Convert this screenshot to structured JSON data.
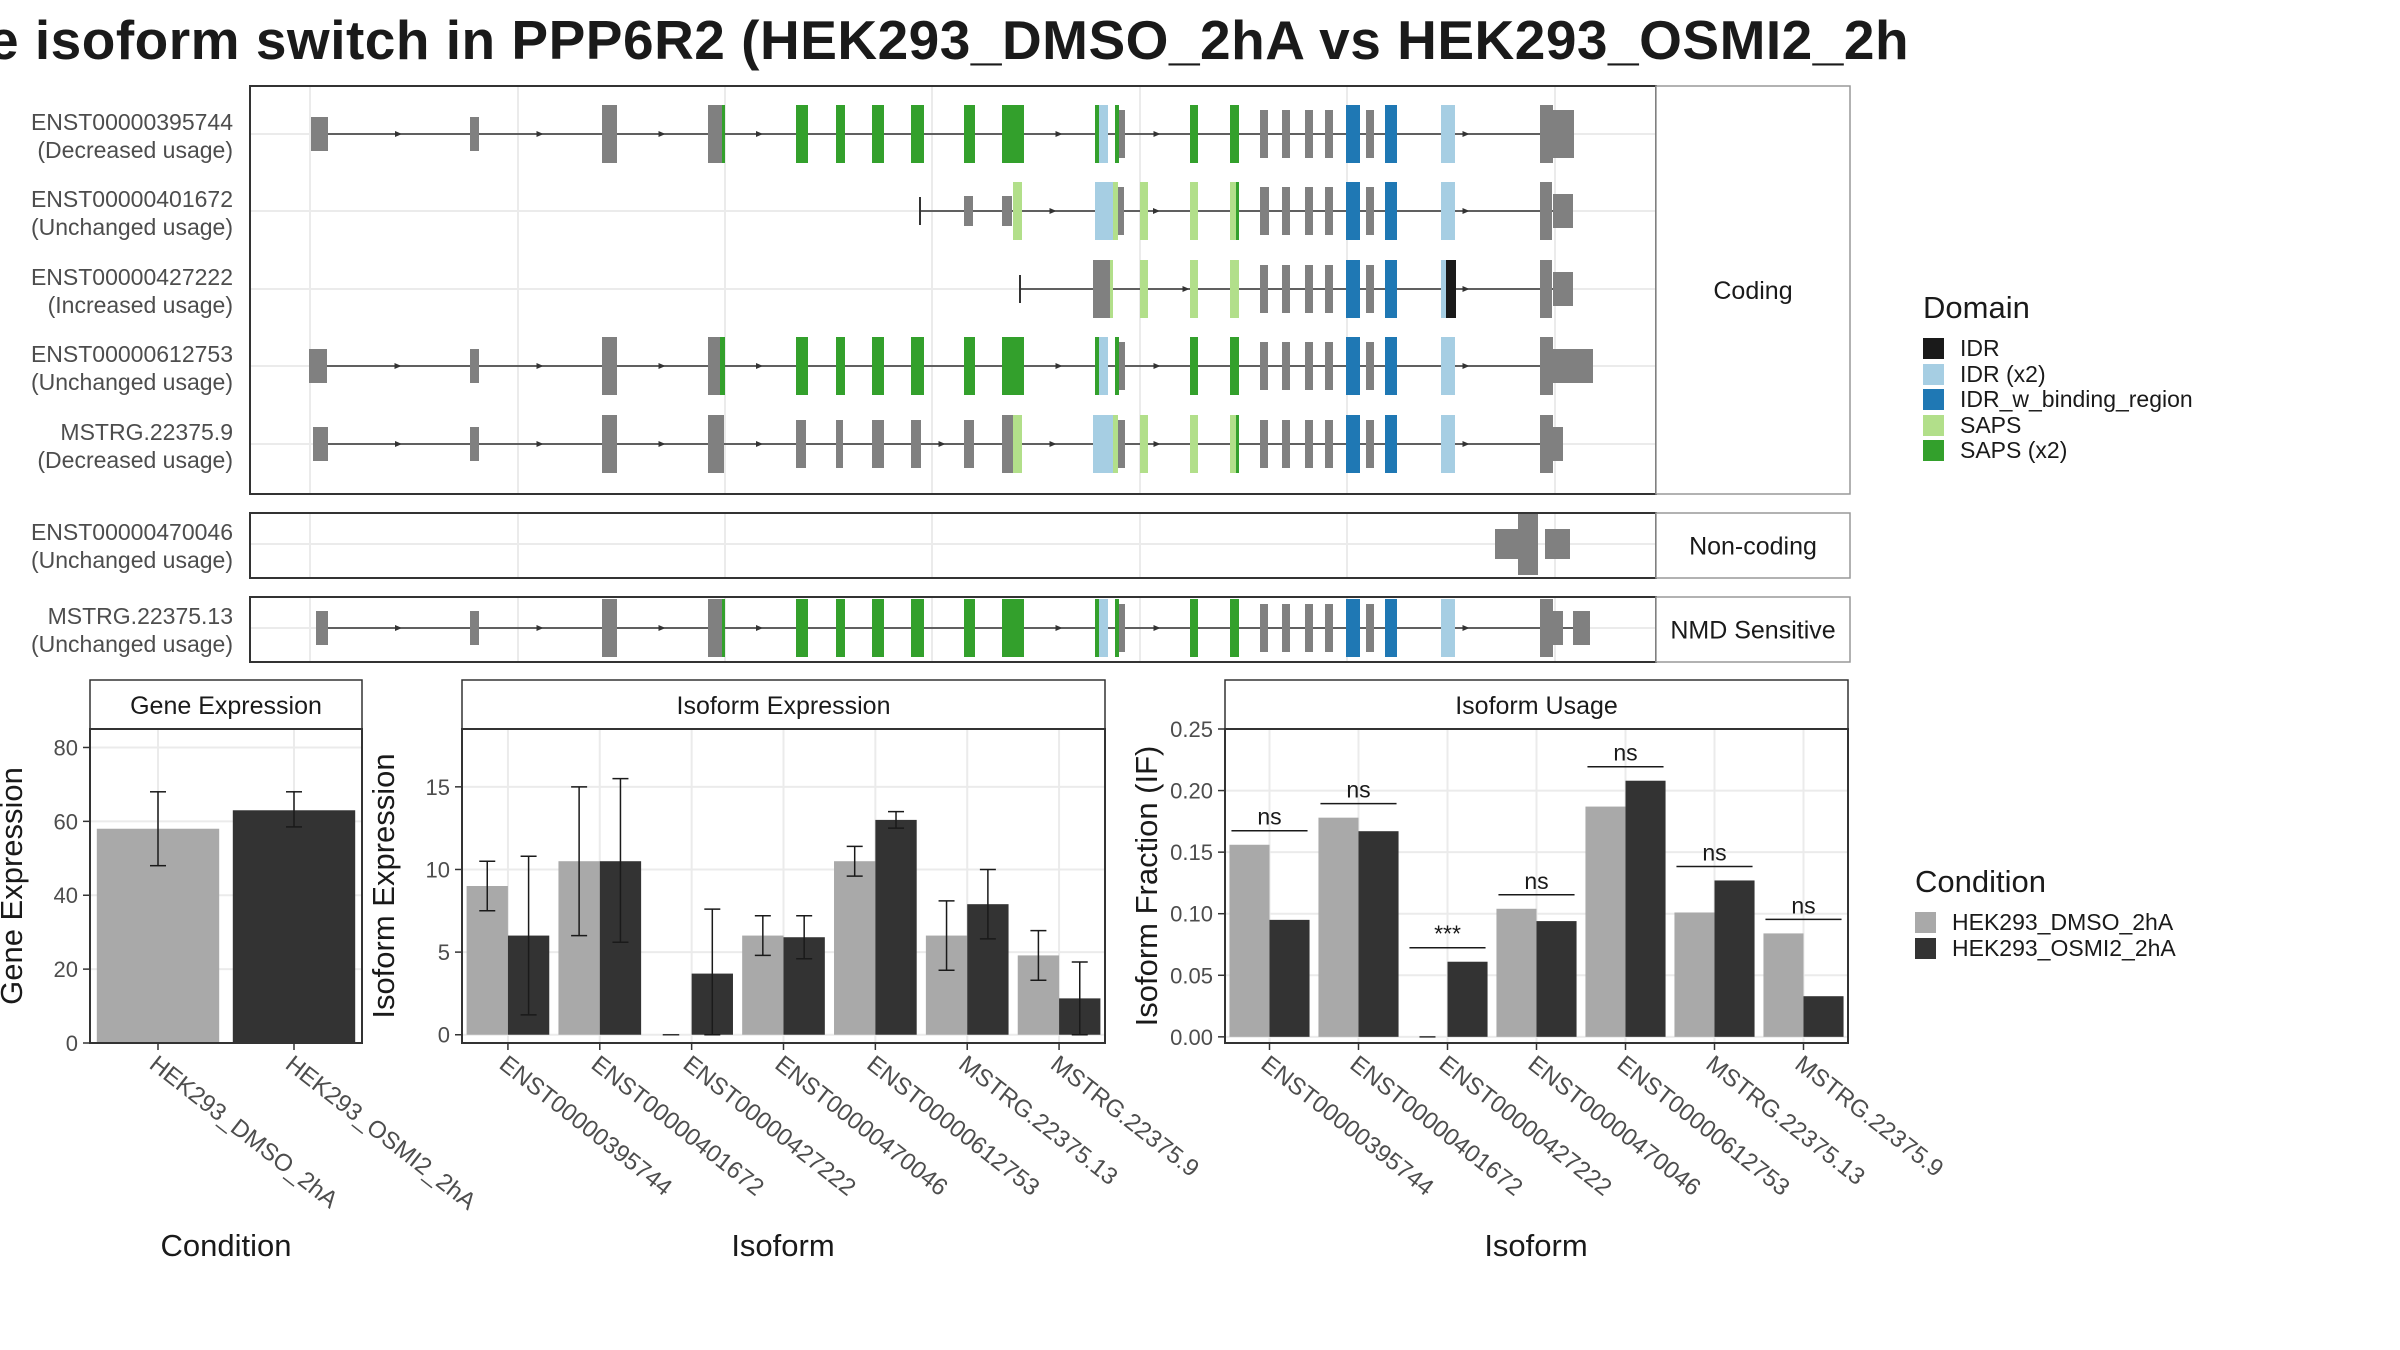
{
  "title": "e isoform switch in PPP6R2 (HEK293_DMSO_2hA vs HEK293_OSMI2_2h",
  "colors": {
    "dmso": "#a9a9a9",
    "osmi2": "#333333",
    "exon": "#808080",
    "IDR": "#1a1a1a",
    "IDR_x2": "#a6cee3",
    "IDR_w_binding_region": "#1f78b4",
    "SAPS": "#b2df8a",
    "SAPS_x2": "#33a02c"
  },
  "domain_legend": {
    "title": "Domain",
    "items": [
      {
        "label": "IDR",
        "color_key": "IDR"
      },
      {
        "label": "IDR (x2)",
        "color_key": "IDR_x2"
      },
      {
        "label": "IDR_w_binding_region",
        "color_key": "IDR_w_binding_region"
      },
      {
        "label": "SAPS",
        "color_key": "SAPS"
      },
      {
        "label": "SAPS (x2)",
        "color_key": "SAPS_x2"
      }
    ]
  },
  "condition_legend": {
    "title": "Condition",
    "items": [
      {
        "label": "HEK293_DMSO_2hA",
        "color_key": "dmso"
      },
      {
        "label": "HEK293_OSMI2_2hA",
        "color_key": "osmi2"
      }
    ]
  },
  "structure": {
    "panels": [
      {
        "label": "Coding",
        "transcripts": [
          {
            "id": "ENST00000395744",
            "usage": "(Decreased usage)",
            "pattern": "full_a"
          },
          {
            "id": "ENST00000401672",
            "usage": "(Unchanged usage)",
            "pattern": "mid_start"
          },
          {
            "id": "ENST00000427222",
            "usage": "(Increased usage)",
            "pattern": "late_start"
          },
          {
            "id": "ENST00000612753",
            "usage": "(Unchanged usage)",
            "pattern": "full_b"
          },
          {
            "id": "MSTRG.22375.9",
            "usage": "(Decreased usage)",
            "pattern": "full_c"
          }
        ]
      },
      {
        "label": "Non-coding",
        "transcripts": [
          {
            "id": "ENST00000470046",
            "usage": "(Unchanged usage)",
            "pattern": "noncoding"
          }
        ]
      },
      {
        "label": "NMD Sensitive",
        "transcripts": [
          {
            "id": "MSTRG.22375.13",
            "usage": "(Unchanged usage)",
            "pattern": "nmd"
          }
        ]
      }
    ]
  },
  "chart_data": [
    {
      "type": "bar",
      "strip": "Gene Expression",
      "xlabel": "Condition",
      "ylabel": "Gene Expression",
      "ylim": [
        0,
        85
      ],
      "yticks": [
        "0",
        "20",
        "40",
        "60",
        "80"
      ],
      "categories": [
        "HEK293_DMSO_2hA",
        "HEK293_OSMI2_2hA"
      ],
      "values": [
        58,
        63
      ],
      "errors": [
        [
          48,
          68
        ],
        [
          58.5,
          68
        ]
      ]
    },
    {
      "type": "bar",
      "strip": "Isoform Expression",
      "xlabel": "Isoform",
      "ylabel": "Isoform Expression",
      "ylim": [
        -0.5,
        18.5
      ],
      "yticks": [
        "0",
        "5",
        "10",
        "15"
      ],
      "categories": [
        "ENST00000395744",
        "ENST00000401672",
        "ENST00000427222",
        "ENST00000470046",
        "ENST00000612753",
        "MSTRG.22375.13",
        "MSTRG.22375.9"
      ],
      "series": [
        {
          "name": "HEK293_DMSO_2hA",
          "values": [
            9.0,
            10.5,
            0.0,
            6.0,
            10.5,
            6.0,
            4.8
          ],
          "errors": [
            [
              7.5,
              10.5
            ],
            [
              6.0,
              15.0
            ],
            [
              0.0,
              0.0
            ],
            [
              4.8,
              7.2
            ],
            [
              9.6,
              11.4
            ],
            [
              3.9,
              8.1
            ],
            [
              3.3,
              6.3
            ]
          ]
        },
        {
          "name": "HEK293_OSMI2_2hA",
          "values": [
            6.0,
            10.5,
            3.7,
            5.9,
            13.0,
            7.9,
            2.2
          ],
          "errors": [
            [
              1.2,
              10.8
            ],
            [
              5.6,
              15.5
            ],
            [
              0.0,
              7.6
            ],
            [
              4.6,
              7.2
            ],
            [
              12.5,
              13.5
            ],
            [
              5.8,
              10.0
            ],
            [
              0.0,
              4.4
            ]
          ]
        }
      ]
    },
    {
      "type": "bar",
      "strip": "Isoform Usage",
      "xlabel": "Isoform",
      "ylabel": "Isoform Fraction (IF)",
      "ylim": [
        -0.005,
        0.25
      ],
      "yticks": [
        "0.00",
        "0.05",
        "0.10",
        "0.15",
        "0.20",
        "0.25"
      ],
      "categories": [
        "ENST00000395744",
        "ENST00000401672",
        "ENST00000427222",
        "ENST00000470046",
        "ENST00000612753",
        "MSTRG.22375.13",
        "MSTRG.22375.9"
      ],
      "series": [
        {
          "name": "HEK293_DMSO_2hA",
          "values": [
            0.156,
            0.178,
            0.0,
            0.104,
            0.187,
            0.101,
            0.084
          ]
        },
        {
          "name": "HEK293_OSMI2_2hA",
          "values": [
            0.095,
            0.167,
            0.061,
            0.094,
            0.208,
            0.127,
            0.033
          ]
        }
      ],
      "significance": [
        "ns",
        "ns",
        "***",
        "ns",
        "ns",
        "ns",
        "ns"
      ]
    }
  ]
}
